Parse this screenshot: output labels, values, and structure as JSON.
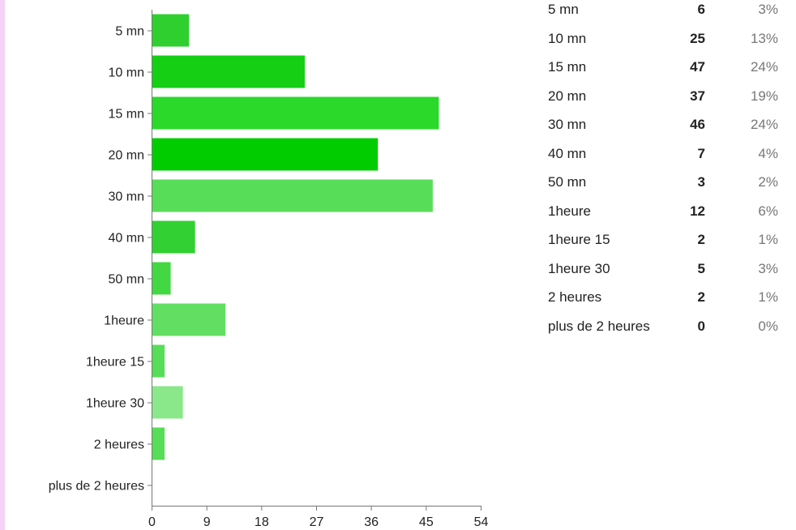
{
  "chart_data": {
    "type": "bar",
    "orientation": "horizontal",
    "categories": [
      "5 mn",
      "10 mn",
      "15 mn",
      "20 mn",
      "30 mn",
      "40 mn",
      "50 mn",
      "1heure",
      "1heure 15",
      "1heure 30",
      "2 heures",
      "plus de 2 heures"
    ],
    "values": [
      6,
      25,
      47,
      37,
      46,
      7,
      3,
      12,
      2,
      5,
      2,
      0
    ],
    "percentages": [
      "3%",
      "13%",
      "24%",
      "19%",
      "24%",
      "4%",
      "2%",
      "6%",
      "1%",
      "3%",
      "1%",
      "0%"
    ],
    "bar_colors": [
      "#2fcf2f",
      "#14cf14",
      "#2bd92b",
      "#00cc00",
      "#57dd57",
      "#33d033",
      "#43d743",
      "#62df62",
      "#57dd57",
      "#8ae78a",
      "#57dd57",
      "#57dd57"
    ],
    "xticks": [
      0,
      9,
      18,
      27,
      36,
      45,
      54
    ],
    "xlim": [
      0,
      54
    ],
    "grid": false
  },
  "strip_color": "#f6d3f6"
}
